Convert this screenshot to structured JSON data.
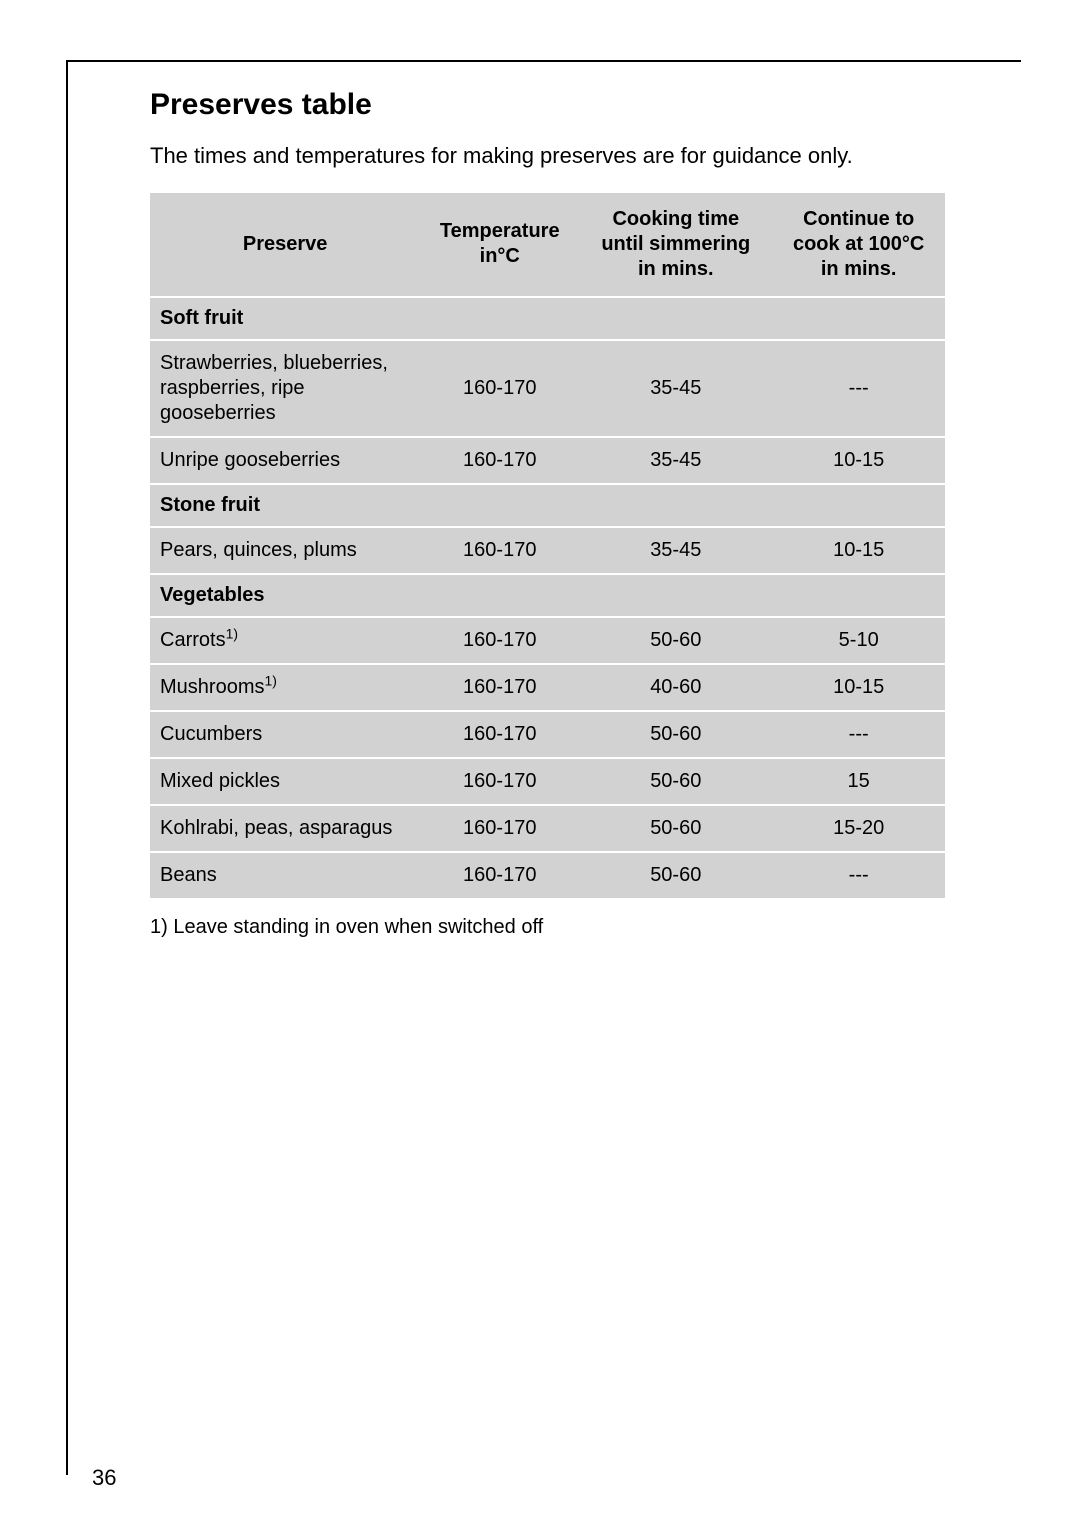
{
  "page": {
    "number": "36",
    "title": "Preserves table",
    "intro": "The times and temperatures for making preserves are for guidance only."
  },
  "table": {
    "background_color": "#d2d2d2",
    "separator_color": "#ffffff",
    "columns": [
      {
        "label_line1": "Preserve",
        "label_line2": "",
        "width_pct": 34,
        "align": "left"
      },
      {
        "label_line1": "Temperature",
        "label_line2": "in°C",
        "width_pct": 20,
        "align": "center"
      },
      {
        "label_line1": "Cooking time",
        "label_line2": "until simmering",
        "label_line3": "in mins.",
        "width_pct": 24,
        "align": "center"
      },
      {
        "label_line1": "Continue to",
        "label_line2": "cook at 100°C",
        "label_line3": "in mins.",
        "width_pct": 22,
        "align": "center"
      }
    ],
    "sections": [
      {
        "title": "Soft fruit",
        "rows": [
          {
            "preserve": "Strawberries, blueberries, raspberries, ripe gooseberries",
            "temp": "160-170",
            "cook": "35-45",
            "cont": "---"
          },
          {
            "preserve": "Unripe gooseberries",
            "temp": "160-170",
            "cook": "35-45",
            "cont": "10-15"
          }
        ]
      },
      {
        "title": "Stone fruit",
        "rows": [
          {
            "preserve": "Pears, quinces, plums",
            "temp": "160-170",
            "cook": "35-45",
            "cont": "10-15"
          }
        ]
      },
      {
        "title": "Vegetables",
        "rows": [
          {
            "preserve": "Carrots",
            "sup": "1)",
            "temp": "160-170",
            "cook": "50-60",
            "cont": "5-10"
          },
          {
            "preserve": "Mushrooms",
            "sup": "1)",
            "temp": "160-170",
            "cook": "40-60",
            "cont": "10-15"
          },
          {
            "preserve": "Cucumbers",
            "temp": "160-170",
            "cook": "50-60",
            "cont": "---"
          },
          {
            "preserve": "Mixed pickles",
            "temp": "160-170",
            "cook": "50-60",
            "cont": "15"
          },
          {
            "preserve": "Kohlrabi, peas, asparagus",
            "temp": "160-170",
            "cook": "50-60",
            "cont": "15-20"
          },
          {
            "preserve": "Beans",
            "temp": "160-170",
            "cook": "50-60",
            "cont": "---"
          }
        ]
      }
    ]
  },
  "footnote": "1) Leave standing in oven when switched off"
}
